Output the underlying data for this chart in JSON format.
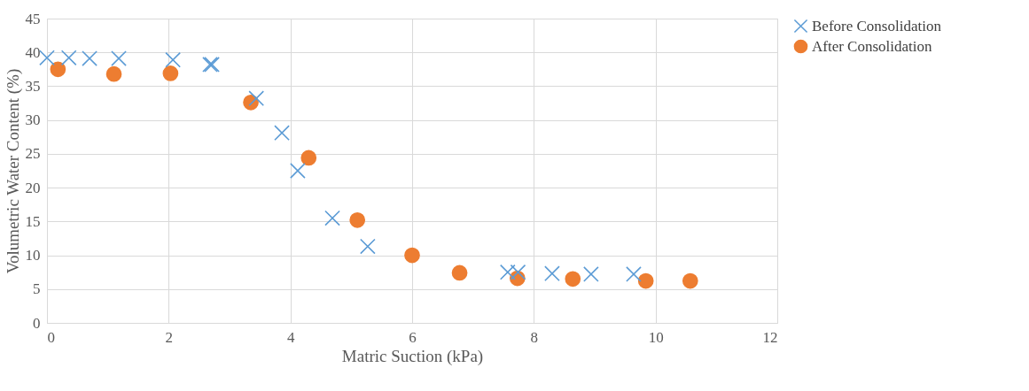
{
  "chart_data": {
    "type": "scatter",
    "xlabel": "Matric Suction (kPa)",
    "ylabel": "Volumetric Water Content (%)",
    "xlim": [
      0,
      12
    ],
    "xticks": [
      0,
      2,
      4,
      6,
      8,
      10,
      12
    ],
    "ylim": [
      0,
      45
    ],
    "yticks": [
      0,
      5,
      10,
      15,
      20,
      25,
      30,
      35,
      40,
      45
    ],
    "grid": true,
    "legend": "right",
    "series": [
      {
        "name": "Before Consolidation",
        "color": "#5b9bd5",
        "marker": "cross",
        "x": [
          0,
          0.36,
          0.7,
          1.18,
          2.07,
          2.68,
          2.71,
          3.44,
          3.86,
          4.12,
          4.69,
          5.27,
          7.57,
          7.74,
          8.3,
          8.94,
          9.64
        ],
        "values": [
          39.2,
          39.2,
          39.1,
          39.1,
          38.9,
          38.2,
          38.2,
          33.2,
          28.1,
          22.5,
          15.5,
          11.3,
          7.5,
          7.5,
          7.3,
          7.2,
          7.2
        ]
      },
      {
        "name": "After Consolidation",
        "color": "#ed7d31",
        "marker": "circle",
        "x": [
          0.18,
          1.1,
          2.03,
          3.35,
          4.3,
          5.1,
          6.0,
          6.78,
          7.73,
          8.64,
          9.84,
          10.57
        ],
        "values": [
          37.5,
          36.8,
          36.9,
          32.6,
          24.4,
          15.2,
          10.0,
          7.4,
          6.6,
          6.5,
          6.2,
          6.2
        ]
      }
    ]
  }
}
